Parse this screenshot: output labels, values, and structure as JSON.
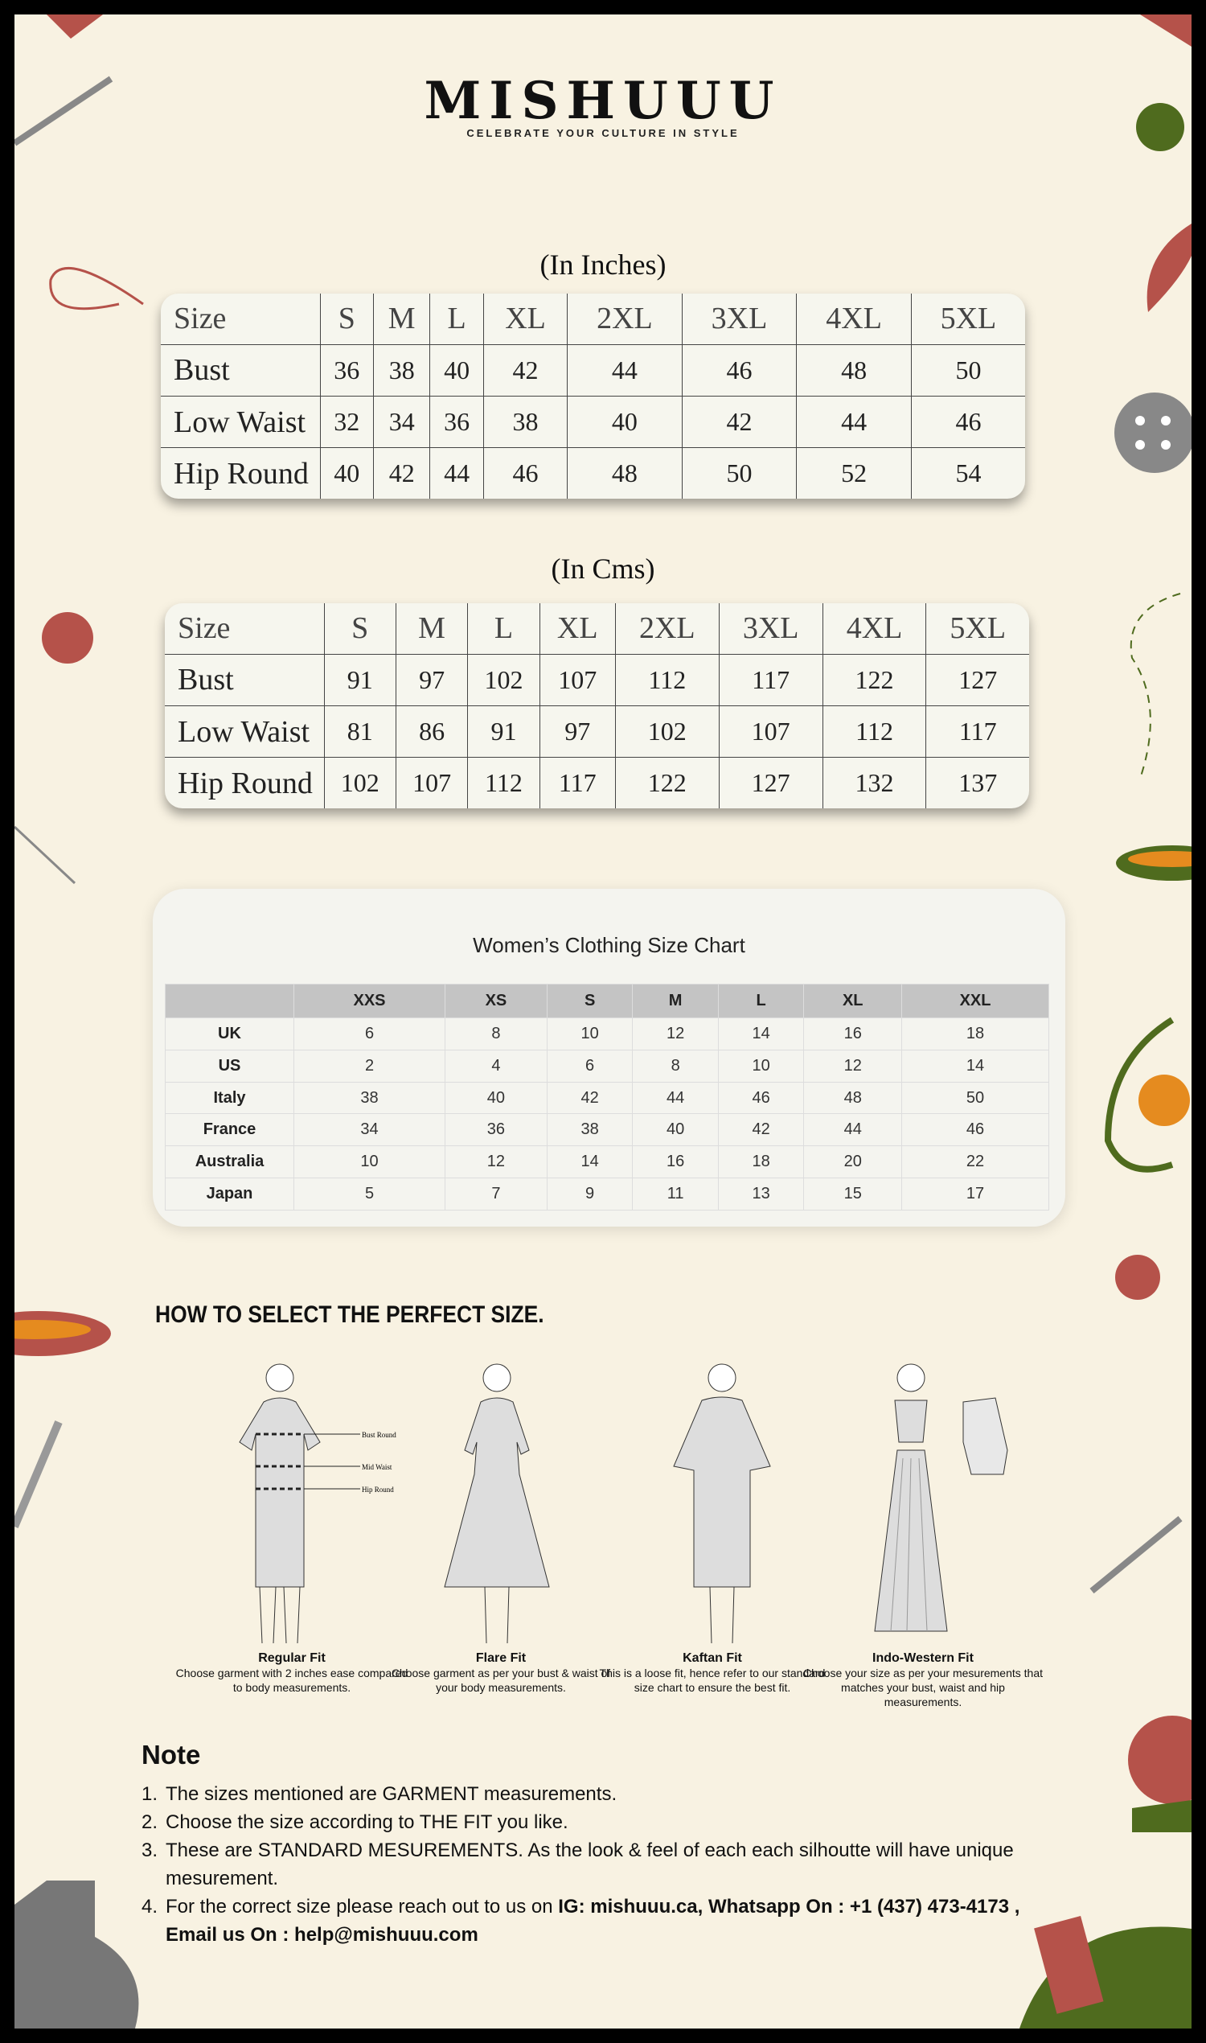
{
  "brand": {
    "name": "MISHUUU",
    "tagline": "CELEBRATE YOUR CULTURE IN STYLE"
  },
  "inches": {
    "title": "(In Inches)",
    "header": [
      "Size",
      "S",
      "M",
      "L",
      "XL",
      "2XL",
      "3XL",
      "4XL",
      "5XL"
    ],
    "rows": [
      [
        "Bust",
        "36",
        "38",
        "40",
        "42",
        "44",
        "46",
        "48",
        "50"
      ],
      [
        "Low Waist",
        "32",
        "34",
        "36",
        "38",
        "40",
        "42",
        "44",
        "46"
      ],
      [
        "Hip Round",
        "40",
        "42",
        "44",
        "46",
        "48",
        "50",
        "52",
        "54"
      ]
    ]
  },
  "cms": {
    "title": "(In Cms)",
    "header": [
      "Size",
      "S",
      "M",
      "L",
      "XL",
      "2XL",
      "3XL",
      "4XL",
      "5XL"
    ],
    "rows": [
      [
        "Bust",
        "91",
        "97",
        "102",
        "107",
        "112",
        "117",
        "122",
        "127"
      ],
      [
        "Low Waist",
        "81",
        "86",
        "91",
        "97",
        "102",
        "107",
        "112",
        "117"
      ],
      [
        "Hip Round",
        "102",
        "107",
        "112",
        "117",
        "122",
        "127",
        "132",
        "137"
      ]
    ]
  },
  "womens": {
    "title": "Women’s Clothing Size Chart",
    "header": [
      "",
      "XXS",
      "XS",
      "S",
      "M",
      "L",
      "XL",
      "XXL"
    ],
    "rows": [
      [
        "UK",
        "6",
        "8",
        "10",
        "12",
        "14",
        "16",
        "18"
      ],
      [
        "US",
        "2",
        "4",
        "6",
        "8",
        "10",
        "12",
        "14"
      ],
      [
        "Italy",
        "38",
        "40",
        "42",
        "44",
        "46",
        "48",
        "50"
      ],
      [
        "France",
        "34",
        "36",
        "38",
        "40",
        "42",
        "44",
        "46"
      ],
      [
        "Australia",
        "10",
        "12",
        "14",
        "16",
        "18",
        "20",
        "22"
      ],
      [
        "Japan",
        "5",
        "7",
        "9",
        "11",
        "13",
        "15",
        "17"
      ]
    ]
  },
  "how": {
    "title": "HOW TO SELECT THE PERFECT SIZE.",
    "labels": {
      "bust": "Bust Round",
      "waist": "Mid Waist",
      "hip": "Hip Round"
    },
    "fits": [
      {
        "name": "Regular Fit",
        "desc": "Choose garment with 2 inches ease compared to body measurements."
      },
      {
        "name": "Flare Fit",
        "desc": "Choose garment as per your bust & waist of your body measurements."
      },
      {
        "name": "Kaftan Fit",
        "desc": "This is a loose fit, hence refer to our standard size chart to ensure the best fit."
      },
      {
        "name": "Indo-Western Fit",
        "desc": "Choose your size as per your mesurements that matches your bust, waist and hip measurements."
      }
    ]
  },
  "note": {
    "title": "Note",
    "items": [
      {
        "n": "1.",
        "text": "The sizes mentioned are GARMENT measurements."
      },
      {
        "n": "2.",
        "text": "Choose the size according to THE FIT you like."
      },
      {
        "n": "3.",
        "text": "These are STANDARD MESUREMENTS. As the look & feel of each each silhoutte will have unique mesurement."
      },
      {
        "n": "4.",
        "text": "For the correct size please reach out to us on ",
        "bold": "IG: mishuuu.ca, Whatsapp On : +1 (437) 473-4173 , Email us On : help@mishuuu.com"
      }
    ]
  },
  "colors": {
    "background": "#f8f2e2",
    "accent_red": "#b5524a",
    "accent_green": "#4f6b1e",
    "accent_orange": "#e58b1f"
  }
}
